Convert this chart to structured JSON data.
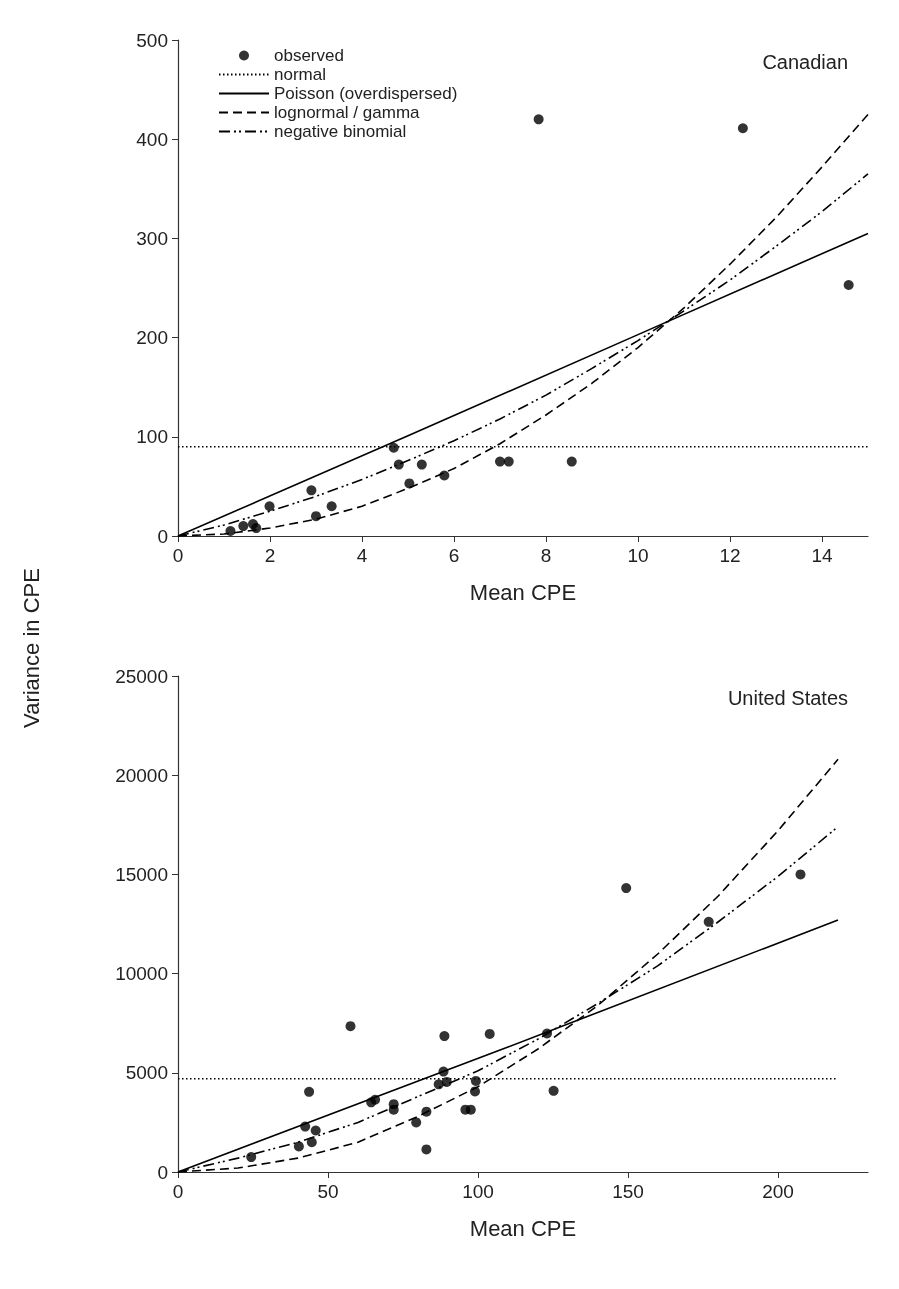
{
  "chart_data": [
    {
      "type": "scatter",
      "xlabel": "Mean CPE",
      "ylabel": "Variance in CPE",
      "annotations": [
        "Canadian"
      ],
      "xlim": [
        0,
        15
      ],
      "xticks": [
        0,
        2,
        4,
        6,
        8,
        10,
        12,
        14
      ],
      "ylim": [
        0,
        500
      ],
      "yticks": [
        0,
        100,
        200,
        300,
        400,
        500
      ],
      "grid": false,
      "legend": "top left",
      "series": [
        {
          "name": "observed",
          "type": "scatter",
          "marker": "circle",
          "color": "#000000",
          "x": [
            1.14,
            1.42,
            1.63,
            1.7,
            1.99,
            2.9,
            3.0,
            3.34,
            4.69,
            4.8,
            5.03,
            5.3,
            5.79,
            7.0,
            7.19,
            8.56,
            7.84,
            12.28,
            14.58
          ],
          "values": [
            5,
            10,
            12,
            8,
            30,
            46,
            20,
            30,
            89,
            72,
            53,
            72,
            61,
            75,
            75,
            75,
            420,
            411,
            253
          ]
        },
        {
          "name": "normal",
          "type": "line",
          "marker": "none",
          "line_style": "dotted",
          "color": "#000000",
          "x": [
            0,
            15
          ],
          "values": [
            90,
            90
          ]
        },
        {
          "name": "Poisson (overdispersed)",
          "type": "line",
          "marker": "none",
          "line_style": "solid",
          "color": "#000000",
          "x": [
            0,
            5,
            10,
            15
          ],
          "values": [
            0,
            101,
            203,
            305
          ]
        },
        {
          "name": "lognormal / gamma",
          "type": "line",
          "marker": "none",
          "line_style": "dashed",
          "color": "#000000",
          "x": [
            0,
            1,
            2,
            3,
            4,
            5,
            6,
            7,
            8,
            9,
            10,
            11,
            12,
            13,
            14,
            15
          ],
          "values": [
            0,
            2,
            8,
            17,
            30,
            48,
            68,
            93,
            122,
            154,
            190,
            230,
            274,
            321,
            372,
            425
          ]
        },
        {
          "name": "negative binomial",
          "type": "line",
          "marker": "none",
          "line_style": "dashdot",
          "color": "#000000",
          "x": [
            0,
            1,
            2,
            3,
            4,
            5,
            6,
            7,
            8,
            9,
            10,
            11,
            12,
            13,
            14,
            15
          ],
          "values": [
            0,
            11,
            25,
            40,
            57,
            76,
            96,
            118,
            142,
            169,
            197,
            227,
            258,
            292,
            327,
            365
          ]
        }
      ]
    },
    {
      "type": "scatter",
      "xlabel": "Mean CPE",
      "annotations": [
        "United States"
      ],
      "xlim": [
        0,
        230
      ],
      "xticks": [
        0,
        50,
        100,
        150,
        200
      ],
      "ylim": [
        0,
        25000
      ],
      "yticks": [
        0,
        5000,
        10000,
        15000,
        20000,
        25000
      ],
      "grid": false,
      "legend": false,
      "series": [
        {
          "type": "scatter",
          "marker": "circle",
          "color": "#000000",
          "x": [
            24.4,
            57.5,
            43.7,
            42.4,
            45.9,
            40.3,
            44.6,
            64.4,
            65.7,
            71.9,
            71.9,
            79.4,
            82.8,
            82.8,
            88.8,
            103.9,
            88.5,
            86.9,
            89.6,
            99.3,
            99.0,
            95.8,
            97.6,
            123.0,
            125.2,
            149.4,
            176.9,
            207.5
          ],
          "values": [
            750,
            7350,
            4040,
            2290,
            2090,
            1290,
            1500,
            3510,
            3640,
            3420,
            3140,
            2500,
            3040,
            1140,
            6850,
            6960,
            5060,
            4420,
            4540,
            4590,
            4060,
            3140,
            3140,
            6980,
            4090,
            14310,
            12610,
            15000
          ]
        },
        {
          "type": "line",
          "marker": "none",
          "line_style": "dotted",
          "color": "#000000",
          "x": [
            0,
            220
          ],
          "values": [
            4700,
            4700
          ]
        },
        {
          "type": "line",
          "marker": "none",
          "line_style": "solid",
          "color": "#000000",
          "x": [
            0,
            110,
            220
          ],
          "values": [
            0,
            6300,
            12700
          ]
        },
        {
          "type": "line",
          "marker": "none",
          "line_style": "dashed",
          "color": "#000000",
          "x": [
            0,
            20,
            40,
            60,
            80,
            100,
            120,
            140,
            160,
            180,
            200,
            220
          ],
          "values": [
            0,
            200,
            700,
            1500,
            2800,
            4300,
            6200,
            8400,
            11000,
            13900,
            17200,
            20800
          ]
        },
        {
          "type": "line",
          "marker": "none",
          "line_style": "dashdot",
          "color": "#000000",
          "x": [
            0,
            20,
            40,
            60,
            80,
            100,
            120,
            140,
            160,
            180,
            200,
            220
          ],
          "values": [
            0,
            700,
            1500,
            2500,
            3800,
            5100,
            6700,
            8500,
            10400,
            12600,
            14900,
            17400
          ]
        }
      ]
    }
  ]
}
